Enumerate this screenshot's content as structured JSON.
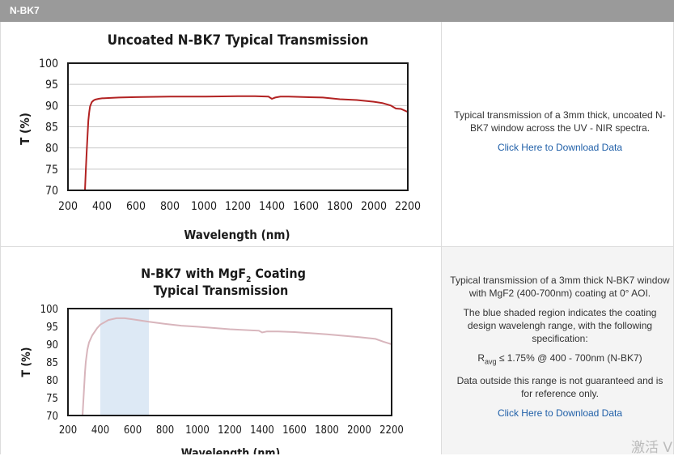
{
  "header": {
    "title": "N-BK7"
  },
  "panels": [
    {
      "description": [
        "Typical transmission of a 3mm thick, uncoated N-BK7 window across the UV - NIR spectra."
      ],
      "link": "Click Here to Download Data"
    },
    {
      "description": [
        "Typical transmission of a 3mm thick N-BK7 window with MgF2 (400-700nm) coating at 0° AOI.",
        "The blue shaded region indicates the coating design wavelengh range, with the following specification:",
        "Ravg ≤ 1.75% @ 400 - 700nm (N-BK7)",
        "Data outside this range is not guaranteed and is for reference only."
      ],
      "spec_label": "R",
      "spec_sub": "avg",
      "spec_rest": " ≤ 1.75% @ 400 - 700nm (N-BK7)",
      "link": "Click Here to Download Data"
    }
  ],
  "watermark": "激活 V",
  "chart_data": [
    {
      "type": "line",
      "title": "Uncoated N-BK7 Typical Transmission",
      "xlabel": "Wavelength (nm)",
      "ylabel": "T (%)",
      "xlim": [
        200,
        2200
      ],
      "ylim": [
        70,
        100
      ],
      "xticks": [
        200,
        400,
        600,
        800,
        1000,
        1200,
        1400,
        1600,
        1800,
        2000,
        2200
      ],
      "yticks": [
        70,
        75,
        80,
        85,
        90,
        95,
        100
      ],
      "grid": true,
      "line_color": "#b22222",
      "series": [
        {
          "x": [
            300,
            305,
            310,
            315,
            320,
            325,
            330,
            340,
            350,
            360,
            380,
            400,
            450,
            500,
            600,
            800,
            1000,
            1200,
            1300,
            1380,
            1400,
            1420,
            1450,
            1500,
            1600,
            1700,
            1800,
            1900,
            2000,
            2050,
            2100,
            2130,
            2160,
            2200
          ],
          "y": [
            70,
            74.5,
            79,
            83,
            86.5,
            88.5,
            89.8,
            90.8,
            91.2,
            91.4,
            91.6,
            91.7,
            91.8,
            91.9,
            92.0,
            92.1,
            92.1,
            92.2,
            92.2,
            92.1,
            91.6,
            91.9,
            92.1,
            92.1,
            92.0,
            91.9,
            91.5,
            91.3,
            90.9,
            90.6,
            90.0,
            89.3,
            89.2,
            88.5
          ]
        }
      ]
    },
    {
      "type": "line",
      "title": "N-BK7 with MgF",
      "title_sub": "2",
      "title_suffix": " Coating",
      "title_line2": "Typical Transmission",
      "xlabel": "Wavelength (nm)",
      "ylabel": "T (%)",
      "xlim": [
        200,
        2200
      ],
      "ylim": [
        70,
        100
      ],
      "xticks": [
        200,
        400,
        600,
        800,
        1000,
        1200,
        1400,
        1600,
        1800,
        2000,
        2200
      ],
      "yticks": [
        70,
        75,
        80,
        85,
        90,
        95,
        100
      ],
      "grid": false,
      "shaded_region": [
        400,
        700
      ],
      "shade_color": "#dde9f5",
      "line_color": "#d8b5bc",
      "series": [
        {
          "x": [
            290,
            295,
            300,
            305,
            310,
            320,
            330,
            350,
            380,
            400,
            450,
            500,
            550,
            600,
            700,
            800,
            900,
            1000,
            1200,
            1380,
            1400,
            1430,
            1500,
            1600,
            1800,
            2000,
            2100,
            2150,
            2200
          ],
          "y": [
            70,
            74,
            78,
            82,
            85,
            88.5,
            90.5,
            92.5,
            94.5,
            95.5,
            96.8,
            97.3,
            97.3,
            97.0,
            96.3,
            95.7,
            95.2,
            94.9,
            94.2,
            93.8,
            93.3,
            93.6,
            93.6,
            93.4,
            92.8,
            92.0,
            91.5,
            90.7,
            90.0
          ]
        }
      ]
    }
  ]
}
